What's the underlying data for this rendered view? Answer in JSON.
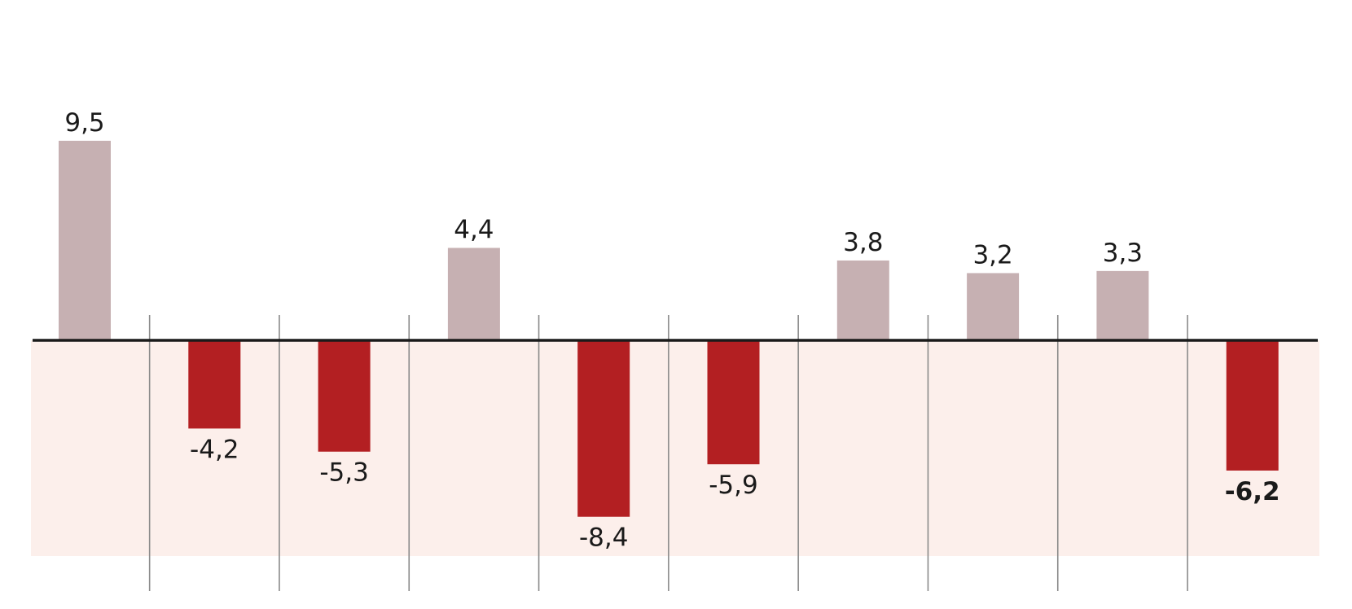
{
  "chart_data": {
    "type": "bar",
    "title": "",
    "xlabel": "",
    "ylabel": "",
    "categories": [
      "",
      "",
      "",
      "",
      "",
      "",
      "",
      "",
      "",
      ""
    ],
    "values": [
      9.5,
      -4.2,
      -5.3,
      4.4,
      -8.4,
      -5.9,
      3.8,
      3.2,
      3.3,
      -6.2
    ],
    "data_labels": [
      "9,5",
      "-4,2",
      "-5,3",
      "4,4",
      "-8,4",
      "-5,9",
      "3,8",
      "3,2",
      "3,3",
      "-6,2"
    ],
    "highlight_index": 9,
    "ylim": [
      -10.3,
      9.5
    ],
    "grid": false,
    "legend": "none",
    "colors": {
      "positive": "#c6b0b2",
      "negative": "#b31f22",
      "negative_band": "#fcefeb",
      "baseline": "#1a1a1a",
      "separator": "#8a8a8a"
    }
  }
}
